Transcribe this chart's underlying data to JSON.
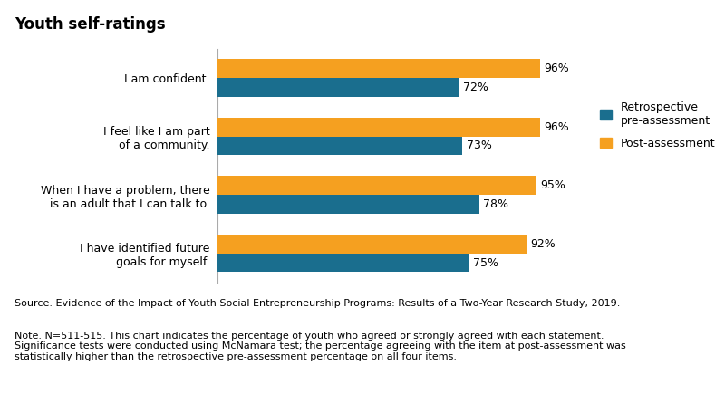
{
  "title": "Youth self-ratings",
  "categories": [
    "I am confident.",
    "I feel like I am part\nof a community.",
    "When I have a problem, there\nis an adult that I can talk to.",
    "I have identified future\ngoals for myself."
  ],
  "retro_values": [
    72,
    73,
    78,
    75
  ],
  "post_values": [
    96,
    96,
    95,
    92
  ],
  "retro_color": "#1a6e8e",
  "post_color": "#f5a020",
  "bar_height": 0.32,
  "xlim": [
    0,
    108
  ],
  "legend_labels": [
    "Retrospective\npre-assessment",
    "Post-assessment"
  ],
  "source_text": "Source. Evidence of the Impact of Youth Social Entrepreneurship Programs: Results of a Two-Year Research Study, 2019.",
  "note_text": "Note. N=511-515. This chart indicates the percentage of youth who agreed or strongly agreed with each statement.\nSignificance tests were conducted using McNamara test; the percentage agreeing with the item at post-assessment was\nstatistically higher than the retrospective pre-assessment percentage on all four items.",
  "title_fontsize": 12,
  "label_fontsize": 9,
  "value_fontsize": 9,
  "legend_fontsize": 9,
  "note_fontsize": 8,
  "background_color": "#ffffff"
}
